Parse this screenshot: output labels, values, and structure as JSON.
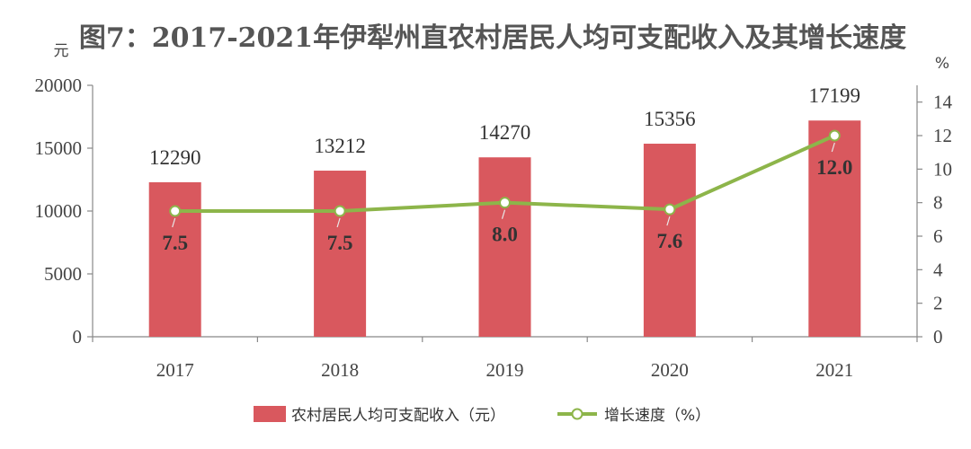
{
  "chart_data": {
    "type": "bar",
    "title": "图7：2017-2021年伊犁州直农村居民人均可支配收入及其增长速度",
    "y_left_unit": "元",
    "y_right_unit": "%",
    "categories": [
      "2017",
      "2018",
      "2019",
      "2020",
      "2021"
    ],
    "series": [
      {
        "name": "农村居民人均可支配收入（元）",
        "type": "bar",
        "axis": "left",
        "color": "#d9585e",
        "values": [
          12290,
          13212,
          14270,
          15356,
          17199
        ],
        "labels": [
          "12290",
          "13212",
          "14270",
          "15356",
          "17199"
        ]
      },
      {
        "name": "增长速度（%）",
        "type": "line",
        "axis": "right",
        "color": "#8db54a",
        "marker": "hollow-circle",
        "values": [
          7.5,
          7.5,
          8.0,
          7.6,
          12.0
        ],
        "labels": [
          "7.5",
          "7.5",
          "8.0",
          "7.6",
          "12.0"
        ]
      }
    ],
    "y_left": {
      "min": 0,
      "max": 20000,
      "ticks": [
        "0",
        "5000",
        "10000",
        "15000",
        "20000"
      ]
    },
    "y_right": {
      "min": 0,
      "max": 15,
      "ticks": [
        "0",
        "2",
        "4",
        "6",
        "8",
        "10",
        "12",
        "14"
      ]
    },
    "grid": false,
    "legend_position": "bottom"
  }
}
